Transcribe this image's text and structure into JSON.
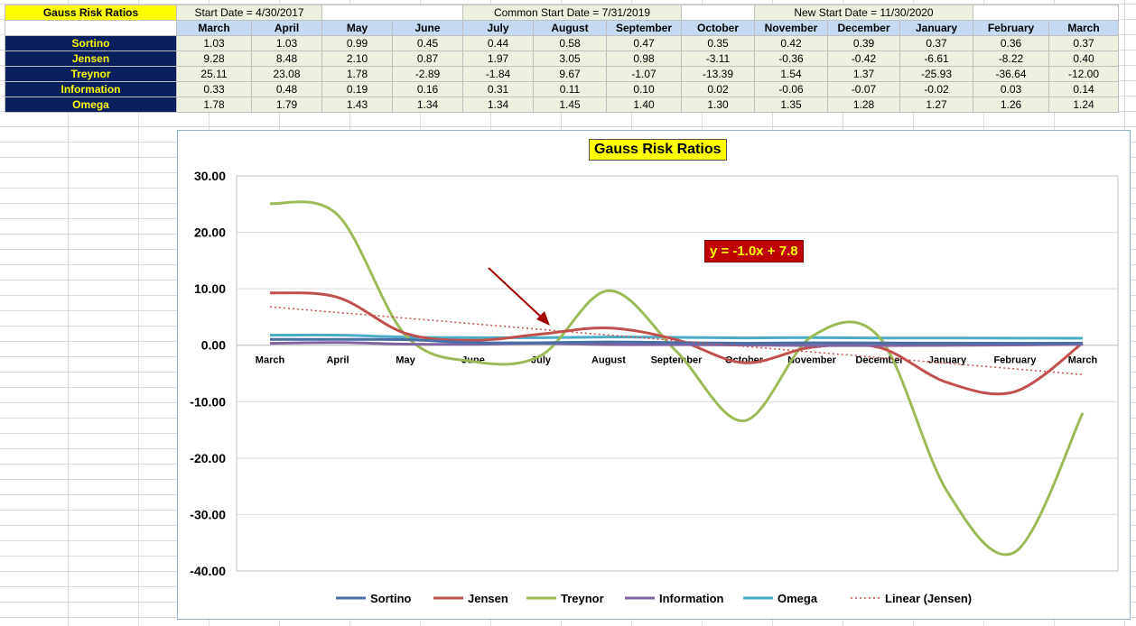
{
  "sheet": {
    "title": "Gauss Risk Ratios",
    "start_date": "Start Date = 4/30/2017",
    "common_start_date": "Common Start Date = 7/31/2019",
    "new_start_date": "New Start Date = 11/30/2020",
    "months": [
      "March",
      "April",
      "May",
      "June",
      "July",
      "August",
      "September",
      "October",
      "November",
      "December",
      "January",
      "February",
      "March"
    ],
    "rows": [
      {
        "label": "Sortino",
        "values": [
          "1.03",
          "1.03",
          "0.99",
          "0.45",
          "0.44",
          "0.58",
          "0.47",
          "0.35",
          "0.42",
          "0.39",
          "0.37",
          "0.36",
          "0.37"
        ]
      },
      {
        "label": "Jensen",
        "values": [
          "9.28",
          "8.48",
          "2.10",
          "0.87",
          "1.97",
          "3.05",
          "0.98",
          "-3.11",
          "-0.36",
          "-0.42",
          "-6.61",
          "-8.22",
          "0.40"
        ]
      },
      {
        "label": "Treynor",
        "values": [
          "25.11",
          "23.08",
          "1.78",
          "-2.89",
          "-1.84",
          "9.67",
          "-1.07",
          "-13.39",
          "1.54",
          "1.37",
          "-25.93",
          "-36.64",
          "-12.00"
        ]
      },
      {
        "label": "Information",
        "values": [
          "0.33",
          "0.48",
          "0.19",
          "0.16",
          "0.31",
          "0.11",
          "0.10",
          "0.02",
          "-0.06",
          "-0.07",
          "-0.02",
          "0.03",
          "0.14"
        ]
      },
      {
        "label": "Omega",
        "values": [
          "1.78",
          "1.79",
          "1.43",
          "1.34",
          "1.34",
          "1.45",
          "1.40",
          "1.30",
          "1.35",
          "1.28",
          "1.27",
          "1.26",
          "1.24"
        ]
      }
    ]
  },
  "chart_data": {
    "type": "line",
    "title": "Gauss Risk Ratios",
    "categories": [
      "March",
      "April",
      "May",
      "June",
      "July",
      "August",
      "September",
      "October",
      "November",
      "December",
      "January",
      "February",
      "March"
    ],
    "ylim": [
      -40,
      30
    ],
    "yticks": [
      "30.00",
      "20.00",
      "10.00",
      "0.00",
      "-10.00",
      "-20.00",
      "-30.00",
      "-40.00"
    ],
    "grid": true,
    "legend_position": "bottom",
    "trendline_label": "y = -1.0x + 7.8",
    "trendline": {
      "series": "Jensen",
      "slope": -1.0,
      "intercept": 7.8
    },
    "series": [
      {
        "name": "Sortino",
        "color": "#4a6fa5",
        "values": [
          1.03,
          1.03,
          0.99,
          0.45,
          0.44,
          0.58,
          0.47,
          0.35,
          0.42,
          0.39,
          0.37,
          0.36,
          0.37
        ]
      },
      {
        "name": "Jensen",
        "color": "#c0504d",
        "values": [
          9.28,
          8.48,
          2.1,
          0.87,
          1.97,
          3.05,
          0.98,
          -3.11,
          -0.36,
          -0.42,
          -6.61,
          -8.22,
          0.4
        ]
      },
      {
        "name": "Treynor",
        "color": "#9bbb59",
        "values": [
          25.11,
          23.08,
          1.78,
          -2.89,
          -1.84,
          9.67,
          -1.07,
          -13.39,
          1.54,
          1.37,
          -25.93,
          -36.64,
          -12.0
        ]
      },
      {
        "name": "Information",
        "color": "#8064a2",
        "values": [
          0.33,
          0.48,
          0.19,
          0.16,
          0.31,
          0.11,
          0.1,
          0.02,
          -0.06,
          -0.07,
          -0.02,
          0.03,
          0.14
        ]
      },
      {
        "name": "Omega",
        "color": "#4bacc6",
        "values": [
          1.78,
          1.79,
          1.43,
          1.34,
          1.34,
          1.45,
          1.4,
          1.3,
          1.35,
          1.28,
          1.27,
          1.26,
          1.24
        ]
      }
    ],
    "legend": [
      "Sortino",
      "Jensen",
      "Treynor",
      "Information",
      "Omega",
      "Linear (Jensen)"
    ]
  }
}
